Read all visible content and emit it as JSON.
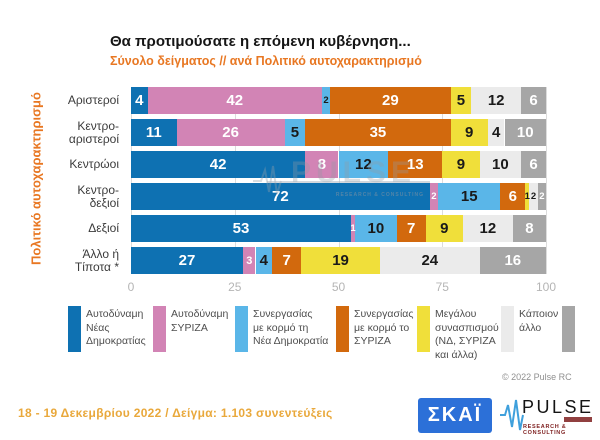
{
  "title": "Θα προτιμούσατε η επόμενη κυβέρνηση...",
  "subtitle": "Σύνολο δείγματος // ανά Πολιτικό αυτοχαρακτηρισμό",
  "y_axis_label": "Πολιτικό αυτοχαρακτηρισμό",
  "chart_data": {
    "type": "bar",
    "stacked": true,
    "orientation": "horizontal",
    "xlim": [
      0,
      100
    ],
    "x_ticks": [
      0,
      25,
      50,
      75,
      100
    ],
    "grid": true,
    "categories": [
      "Αριστεροί",
      "Κεντρο-\nαριστεροί",
      "Κεντρώοι",
      "Κεντρο-\nδεξιοί",
      "Δεξιοί",
      "Άλλο ή\nΤίποτα *"
    ],
    "series": [
      {
        "name": "Αυτοδύναμη Νέας Δημοκρατίας",
        "color": "#0E71B2",
        "label_color": "#FFFFFF",
        "values": [
          4,
          11,
          42,
          72,
          53,
          27
        ]
      },
      {
        "name": "Αυτοδύναμη ΣΥΡΙΖΑ",
        "color": "#D284B5",
        "label_color": "#FFFFFF",
        "values": [
          42,
          26,
          8,
          2,
          1,
          3
        ]
      },
      {
        "name": "Συνεργασίας με κορμό τη Νέα Δημοκρατία",
        "color": "#5AB6E8",
        "label_color": "#1A1A1A",
        "values": [
          2,
          5,
          12,
          15,
          10,
          4
        ]
      },
      {
        "name": "Συνεργασίας με κορμό το ΣΥΡΙΖΑ",
        "color": "#D2690D",
        "label_color": "#FFFFFF",
        "values": [
          29,
          35,
          13,
          6,
          7,
          7
        ]
      },
      {
        "name": "Μεγάλου συνασπισμού (ΝΔ, ΣΥΡΙΖΑ και άλλα)",
        "color": "#F0DF3A",
        "label_color": "#1A1A1A",
        "values": [
          5,
          9,
          9,
          1,
          9,
          19
        ]
      },
      {
        "name": "Κάποιον άλλο",
        "color": "#EBEBEB",
        "label_color": "#1A1A1A",
        "values": [
          12,
          4,
          10,
          2,
          12,
          24
        ]
      },
      {
        "name": "",
        "color": "#A6A6A6",
        "label_color": "#FFFFFF",
        "values": [
          6,
          10,
          6,
          2,
          8,
          16
        ]
      }
    ]
  },
  "legend": {
    "items": [
      {
        "label": "Αυτοδύναμη\nΝέας\nΔημοκρατίας",
        "color": "#0E71B2"
      },
      {
        "label": "Αυτοδύναμη\nΣΥΡΙΖΑ",
        "color": "#D284B5"
      },
      {
        "label": "Συνεργασίας\nμε κορμό τη\nΝέα Δημοκρατία",
        "color": "#5AB6E8"
      },
      {
        "label": "Συνεργασίας\nμε κορμό το\nΣΥΡΙΖΑ",
        "color": "#D2690D"
      },
      {
        "label": "Μεγάλου\nσυνασπισμού\n(ΝΔ, ΣΥΡΙΖΑ\nκαι άλλα)",
        "color": "#F0DF3A"
      },
      {
        "label": "Κάποιον\nάλλο",
        "color": "#EBEBEB"
      },
      {
        "label": "",
        "color": "#A6A6A6"
      }
    ]
  },
  "copyright": "© 2022 Pulse RC",
  "watermark": {
    "text": "PULSE",
    "subtext": "RESEARCH & CONSULTING"
  },
  "footer": {
    "date_sample": "18 - 19 Δεκεμβρίου 2022 / Δείγμα: 1.103 συνεντεύξεις",
    "skai_logo_text": "ΣΚΑΪ",
    "pulse_logo_text": "PULSE",
    "pulse_logo_subtext": "RESEARCH & CONSULTING"
  },
  "colors": {
    "accent_orange": "#E87722",
    "footer_gold": "#E9A83B",
    "skai_blue": "#2C70D8",
    "tick_gray": "#B5B5B5"
  }
}
